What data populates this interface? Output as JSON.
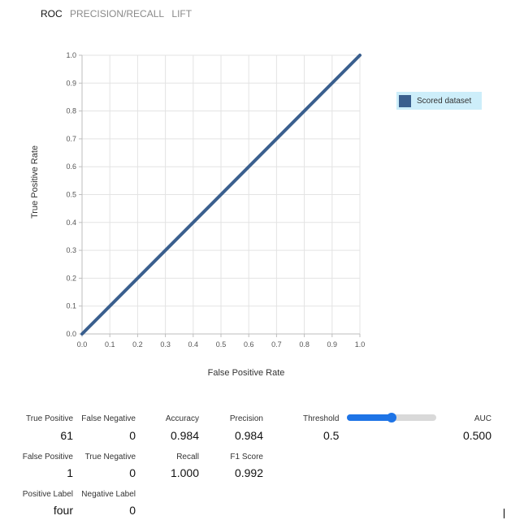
{
  "tabs": [
    {
      "label": "ROC",
      "active": true
    },
    {
      "label": "PRECISION/RECALL",
      "active": false
    },
    {
      "label": "LIFT",
      "active": false
    }
  ],
  "chart_data": {
    "type": "line",
    "xlabel": "False Positive Rate",
    "ylabel": "True Positive Rate",
    "xlim": [
      0.0,
      1.0
    ],
    "ylim": [
      0.0,
      1.0
    ],
    "xticks": [
      "0.0",
      "0.1",
      "0.2",
      "0.3",
      "0.4",
      "0.5",
      "0.6",
      "0.7",
      "0.8",
      "0.9",
      "1.0"
    ],
    "yticks": [
      "0.0",
      "0.1",
      "0.2",
      "0.3",
      "0.4",
      "0.5",
      "0.6",
      "0.7",
      "0.8",
      "0.9",
      "1.0"
    ],
    "grid": true,
    "legend_position": "right",
    "series": [
      {
        "name": "Scored dataset",
        "color": "#3a5f8e",
        "x": [
          0.0,
          1.0
        ],
        "y": [
          0.0,
          1.0
        ]
      }
    ]
  },
  "metrics": {
    "true_positive": {
      "label": "True Positive",
      "value": "61"
    },
    "false_negative": {
      "label": "False Negative",
      "value": "0"
    },
    "accuracy": {
      "label": "Accuracy",
      "value": "0.984"
    },
    "precision": {
      "label": "Precision",
      "value": "0.984"
    },
    "threshold": {
      "label": "Threshold",
      "value": "0.5",
      "slider_fraction": 0.5
    },
    "auc": {
      "label": "AUC",
      "value": "0.500"
    },
    "false_positive": {
      "label": "False Positive",
      "value": "1"
    },
    "true_negative": {
      "label": "True Negative",
      "value": "0"
    },
    "recall": {
      "label": "Recall",
      "value": "1.000"
    },
    "f1_score": {
      "label": "F1 Score",
      "value": "0.992"
    },
    "positive_label": {
      "label": "Positive Label",
      "value": "four"
    },
    "negative_label": {
      "label": "Negative Label",
      "value": "0"
    }
  },
  "colors": {
    "accent": "#1e74e6",
    "series": "#3a5f8e",
    "legend_bg": "#cdeefa"
  }
}
